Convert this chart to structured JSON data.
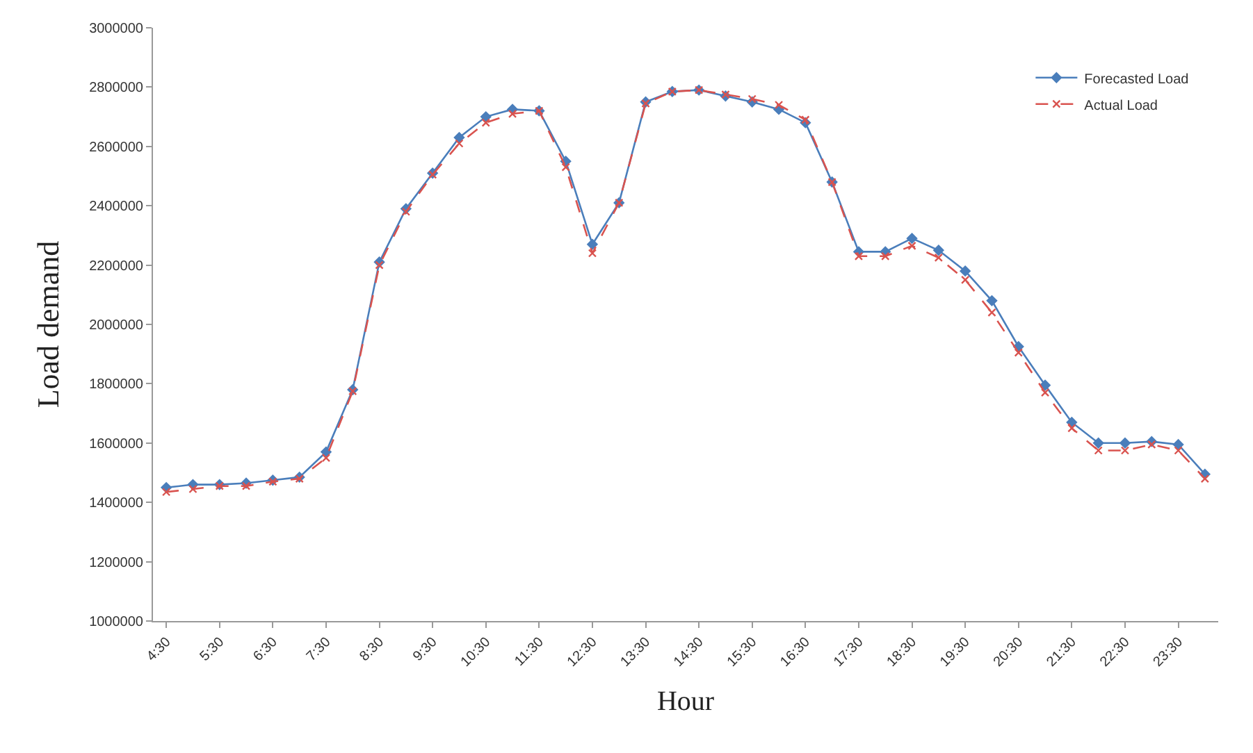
{
  "chart_data": {
    "type": "line",
    "xlabel": "Hour",
    "ylabel": "Load demand",
    "categories": [
      "4:30",
      null,
      "5:30",
      null,
      "6:30",
      null,
      "7:30",
      null,
      "8:30",
      null,
      "9:30",
      null,
      "10:30",
      null,
      "11:30",
      null,
      "12:30",
      null,
      "13:30",
      null,
      "14:30",
      null,
      "15:30",
      null,
      "16:30",
      null,
      "17:30",
      null,
      "18:30",
      null,
      "19:30",
      null,
      "20:30",
      null,
      "21:30",
      null,
      "22:30",
      null,
      "23:30",
      null
    ],
    "series": [
      {
        "name": "Forecasted Load",
        "color": "#4a7ebb",
        "marker": "diamond",
        "line_style": "solid",
        "values": [
          1450000,
          1460000,
          1460000,
          1465000,
          1475000,
          1485000,
          1570000,
          1780000,
          2210000,
          2390000,
          2510000,
          2630000,
          2700000,
          2725000,
          2720000,
          2550000,
          2270000,
          2410000,
          2750000,
          2785000,
          2790000,
          2770000,
          2750000,
          2725000,
          2680000,
          2480000,
          2245000,
          2245000,
          2290000,
          2250000,
          2180000,
          2080000,
          1925000,
          1795000,
          1670000,
          1600000,
          1600000,
          1605000,
          1595000,
          1495000
        ]
      },
      {
        "name": "Actual Load",
        "color": "#d9534f",
        "marker": "cross",
        "line_style": "dashed",
        "values": [
          1435000,
          1445000,
          1455000,
          1455000,
          1470000,
          1480000,
          1550000,
          1775000,
          2200000,
          2380000,
          2505000,
          2610000,
          2680000,
          2710000,
          2720000,
          2530000,
          2240000,
          2410000,
          2745000,
          2785000,
          2790000,
          2775000,
          2760000,
          2740000,
          2690000,
          2480000,
          2230000,
          2230000,
          2265000,
          2225000,
          2150000,
          2040000,
          1905000,
          1770000,
          1650000,
          1575000,
          1575000,
          1595000,
          1575000,
          1480000
        ]
      }
    ],
    "ylim": [
      1000000,
      3000000
    ],
    "yticks": [
      1000000,
      1200000,
      1400000,
      1600000,
      1800000,
      2000000,
      2200000,
      2400000,
      2600000,
      2800000,
      3000000
    ],
    "grid": false,
    "legend": "top right"
  }
}
